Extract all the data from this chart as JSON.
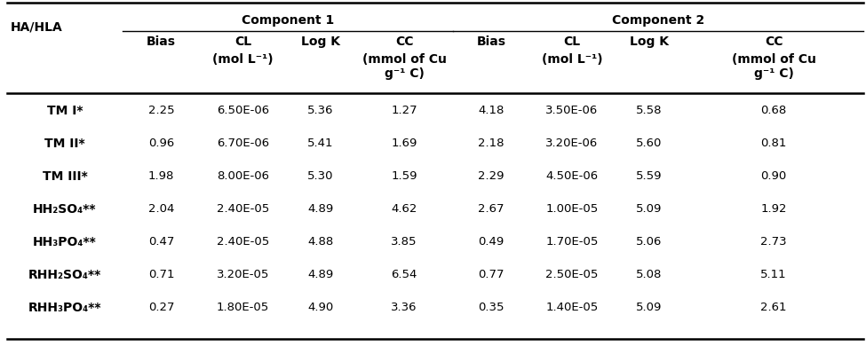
{
  "ha_hla_label": "HA/HLA",
  "comp1_label": "Component 1",
  "comp2_label": "Component 2",
  "col_headers_line1": [
    "Bias",
    "CL",
    "Log K",
    "CC"
  ],
  "col_headers_line2": [
    "",
    "(mol L⁻¹)",
    "",
    "(mmol of Cu\ng⁻¹ C)"
  ],
  "rows": [
    {
      "label": "TM I*",
      "label_bold": true,
      "c1": [
        "2.25",
        "6.50E-06",
        "5.36",
        "1.27"
      ],
      "c2": [
        "4.18",
        "3.50E-06",
        "5.58",
        "0.68"
      ]
    },
    {
      "label": "TM II*",
      "label_bold": true,
      "c1": [
        "0.96",
        "6.70E-06",
        "5.41",
        "1.69"
      ],
      "c2": [
        "2.18",
        "3.20E-06",
        "5.60",
        "0.81"
      ]
    },
    {
      "label": "TM III*",
      "label_bold": true,
      "c1": [
        "1.98",
        "8.00E-06",
        "5.30",
        "1.59"
      ],
      "c2": [
        "2.29",
        "4.50E-06",
        "5.59",
        "0.90"
      ]
    },
    {
      "label": "HH₂SO₄**",
      "label_bold": true,
      "c1": [
        "2.04",
        "2.40E-05",
        "4.89",
        "4.62"
      ],
      "c2": [
        "2.67",
        "1.00E-05",
        "5.09",
        "1.92"
      ]
    },
    {
      "label": "HH₃PO₄**",
      "label_bold": true,
      "c1": [
        "0.47",
        "2.40E-05",
        "4.88",
        "3.85"
      ],
      "c2": [
        "0.49",
        "1.70E-05",
        "5.06",
        "2.73"
      ]
    },
    {
      "label": "RHH₂SO₄**",
      "label_bold": true,
      "c1": [
        "0.71",
        "3.20E-05",
        "4.89",
        "6.54"
      ],
      "c2": [
        "0.77",
        "2.50E-05",
        "5.08",
        "5.11"
      ]
    },
    {
      "label": "RHH₃PO₄**",
      "label_bold": true,
      "c1": [
        "0.27",
        "1.80E-05",
        "4.90",
        "3.36"
      ],
      "c2": [
        "0.35",
        "1.40E-05",
        "5.09",
        "2.61"
      ]
    }
  ],
  "bg_color": "#ffffff",
  "text_color": "#000000",
  "data_fontsize": 9.5,
  "header_fontsize": 10.0,
  "label_fontsize": 10.0
}
